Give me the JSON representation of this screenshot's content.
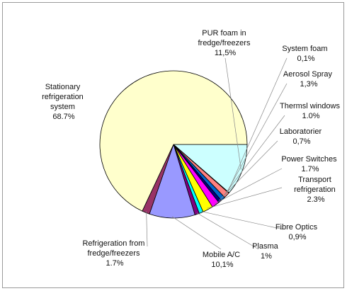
{
  "chart_data": {
    "type": "pie",
    "slices": [
      {
        "name": "PUR foam in fredge/freezers",
        "value": 11.5,
        "value_label": "11,5%",
        "color": "#ccffff"
      },
      {
        "name": "System foam",
        "value": 0.1,
        "value_label": "0,1%",
        "color": "#ff9999"
      },
      {
        "name": "Aerosol Spray",
        "value": 1.3,
        "value_label": "1,3%",
        "color": "#ff8080"
      },
      {
        "name": "Thermsl windows",
        "value": 1.0,
        "value_label": "1.0%",
        "color": "#0066cc"
      },
      {
        "name": "Laboratorier",
        "value": 0.7,
        "value_label": "0,7%",
        "color": "#000080"
      },
      {
        "name": "Power Switches",
        "value": 1.7,
        "value_label": "1.7%",
        "color": "#ff00ff"
      },
      {
        "name": "Transport refrigeration",
        "value": 2.3,
        "value_label": "2.3%",
        "color": "#ffff00"
      },
      {
        "name": "Fibre Optics",
        "value": 0.9,
        "value_label": "0,9%",
        "color": "#00ffff"
      },
      {
        "name": "Plasma",
        "value": 1.0,
        "value_label": "1%",
        "color": "#800080"
      },
      {
        "name": "Mobile A/C",
        "value": 10.1,
        "value_label": "10,1%",
        "color": "#9999ff"
      },
      {
        "name": "Refrigeration from fredge/freezers",
        "value": 1.7,
        "value_label": "1.7%",
        "color": "#993366"
      },
      {
        "name": "Stationary refrigeration system",
        "value": 68.7,
        "value_label": "68.7%",
        "color": "#ffffcc"
      }
    ],
    "labels_text": {
      "pur": [
        "PUR foam in",
        "fredge/freezers",
        "11,5%"
      ],
      "system_foam": [
        "System foam",
        "0,1%"
      ],
      "aerosol": [
        "Aerosol Spray",
        "1,3%"
      ],
      "windows": [
        "Thermsl windows",
        "1.0%"
      ],
      "lab": [
        "Laboratorier",
        "0,7%"
      ],
      "power": [
        "Power Switches",
        "1.7%"
      ],
      "transport": [
        "Transport",
        "refrigeration",
        "2.3%"
      ],
      "fibre": [
        "Fibre Optics",
        "0,9%"
      ],
      "plasma": [
        "Plasma",
        "1%"
      ],
      "mobile": [
        "Mobile A/C",
        "10,1%"
      ],
      "refrig": [
        "Refrigeration from",
        "fredge/freezers",
        "1.7%"
      ],
      "stationary": [
        "Stationary",
        "refrigeration",
        "system",
        "68.7%"
      ]
    },
    "legend": "none",
    "grid": false
  }
}
